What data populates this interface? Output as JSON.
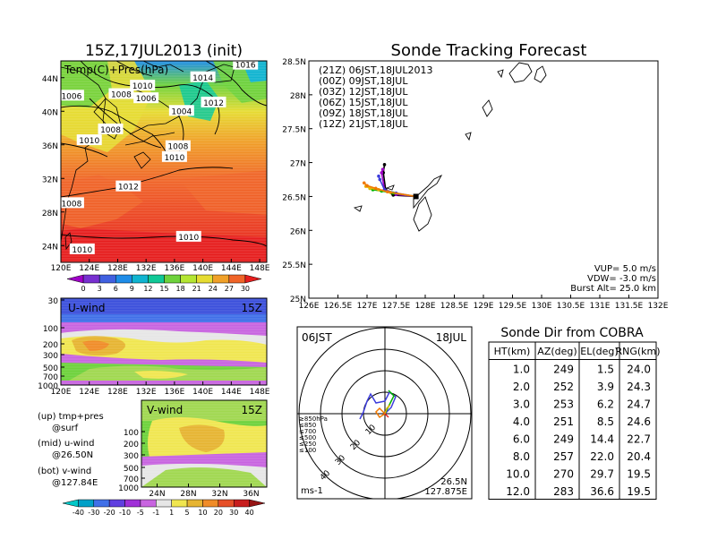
{
  "left": {
    "title": "15Z,17JUL2013 (init)",
    "map_label": "Temp(C)+Pres(hPa)",
    "lat_ticks": [
      "44N",
      "40N",
      "36N",
      "32N",
      "28N",
      "24N"
    ],
    "lon_ticks": [
      "120E",
      "124E",
      "128E",
      "132E",
      "136E",
      "140E",
      "144E",
      "148E"
    ],
    "isobars": [
      {
        "text": "1006",
        "lon": 121.5,
        "lat": 41.8
      },
      {
        "text": "1008",
        "lon": 128.5,
        "lat": 42.0
      },
      {
        "text": "1010",
        "lon": 131.5,
        "lat": 43.0
      },
      {
        "text": "1014",
        "lon": 140.0,
        "lat": 44.0
      },
      {
        "text": "1016",
        "lon": 146.0,
        "lat": 45.5
      },
      {
        "text": "1006",
        "lon": 132.0,
        "lat": 41.5
      },
      {
        "text": "1004",
        "lon": 137.0,
        "lat": 40.0
      },
      {
        "text": "1012",
        "lon": 141.5,
        "lat": 41.0
      },
      {
        "text": "1008",
        "lon": 127.0,
        "lat": 37.8
      },
      {
        "text": "1010",
        "lon": 124.0,
        "lat": 36.5
      },
      {
        "text": "1008",
        "lon": 136.5,
        "lat": 35.8
      },
      {
        "text": "1010",
        "lon": 136.0,
        "lat": 34.5
      },
      {
        "text": "1012",
        "lon": 129.5,
        "lat": 31.0
      },
      {
        "text": "1008",
        "lon": 121.5,
        "lat": 29.0
      },
      {
        "text": "1010",
        "lon": 138.0,
        "lat": 25.0
      },
      {
        "text": "1010",
        "lon": 123.0,
        "lat": 23.5
      }
    ],
    "temp_colorbar": {
      "labels": [
        "0",
        "3",
        "6",
        "9",
        "12",
        "15",
        "18",
        "21",
        "24",
        "27",
        "30"
      ],
      "colors": [
        "#a000c8",
        "#7830d0",
        "#4060e0",
        "#1e8ce8",
        "#10b4d0",
        "#10c896",
        "#6ed23c",
        "#b4e632",
        "#e6dc32",
        "#f0a028",
        "#f06428",
        "#e61e1e"
      ]
    },
    "uwind": {
      "label": "U-wind",
      "time": "15Z",
      "p_ticks": [
        "30",
        "100",
        "200",
        "300",
        "500",
        "700",
        "1000"
      ]
    },
    "vwind": {
      "label": "V-wind",
      "time": "15Z",
      "p_ticks": [
        "100",
        "200",
        "300",
        "500",
        "700",
        "1000"
      ],
      "lat_ticks": [
        "24N",
        "28N",
        "32N",
        "36N"
      ]
    },
    "notes": [
      "(up) tmp+pres",
      "@surf",
      "(mid) u-wind",
      "@26.50N",
      "(bot) v-wind",
      "@127.84E"
    ],
    "wind_colorbar": {
      "labels": [
        "-40",
        "-30",
        "-20",
        "-10",
        "-5",
        "-1",
        "1",
        "5",
        "10",
        "20",
        "30",
        "40"
      ],
      "colors": [
        "#00c8c8",
        "#00a0c8",
        "#4070e8",
        "#6040e0",
        "#a030d8",
        "#c864e0",
        "#e6e6e6",
        "#f0e650",
        "#e6b432",
        "#f08c28",
        "#e65028",
        "#c81e1e",
        "#961414"
      ]
    }
  },
  "track": {
    "title": "Sonde Tracking Forecast",
    "legend": [
      {
        "text": "(21Z) 06JST,18JUL2013",
        "color": "#000000"
      },
      {
        "text": "(00Z) 09JST,18JUL",
        "color": "#a000c8"
      },
      {
        "text": "(03Z) 12JST,18JUL",
        "color": "#3c3cdc"
      },
      {
        "text": "(06Z) 15JST,18JUL",
        "color": "#00b400"
      },
      {
        "text": "(09Z) 18JST,18JUL",
        "color": "#e6b400"
      },
      {
        "text": "(12Z) 21JST,18JUL",
        "color": "#f07800"
      }
    ],
    "lat_ticks": [
      "28.5N",
      "28N",
      "27.5N",
      "27N",
      "26.5N",
      "26N",
      "25.5N",
      "25N"
    ],
    "lon_ticks": [
      "126E",
      "126.5E",
      "127E",
      "127.5E",
      "128E",
      "128.5E",
      "129E",
      "129.5E",
      "130E",
      "130.5E",
      "131E",
      "131.5E",
      "132E"
    ],
    "info": [
      "VUP= 5.0 m/s",
      "VDW= -3.0 m/s",
      "Burst Alt= 25.0 km"
    ],
    "tracks": [
      {
        "color": "#000000",
        "points": [
          [
            127.84,
            26.5
          ],
          [
            127.45,
            26.52
          ],
          [
            127.32,
            26.6
          ],
          [
            127.28,
            26.85
          ],
          [
            127.3,
            26.97
          ]
        ]
      },
      {
        "color": "#a000c8",
        "points": [
          [
            127.84,
            26.5
          ],
          [
            127.5,
            26.53
          ],
          [
            127.3,
            26.6
          ],
          [
            127.25,
            26.85
          ],
          [
            127.27,
            26.9
          ]
        ]
      },
      {
        "color": "#3c3cdc",
        "points": [
          [
            127.84,
            26.5
          ],
          [
            127.5,
            26.55
          ],
          [
            127.3,
            26.6
          ],
          [
            127.22,
            26.75
          ],
          [
            127.2,
            26.8
          ]
        ]
      },
      {
        "color": "#00b400",
        "points": [
          [
            127.84,
            26.5
          ],
          [
            127.45,
            26.55
          ],
          [
            127.25,
            26.58
          ],
          [
            127.1,
            26.6
          ],
          [
            127.05,
            26.62
          ]
        ]
      },
      {
        "color": "#e6b400",
        "points": [
          [
            127.84,
            26.5
          ],
          [
            127.4,
            26.56
          ],
          [
            127.2,
            26.6
          ],
          [
            127.05,
            26.62
          ],
          [
            126.98,
            26.65
          ]
        ]
      },
      {
        "color": "#f07800",
        "points": [
          [
            127.84,
            26.5
          ],
          [
            127.35,
            26.57
          ],
          [
            127.15,
            26.62
          ],
          [
            127.0,
            26.66
          ],
          [
            126.95,
            26.7
          ]
        ]
      }
    ]
  },
  "hodograph": {
    "jst": "06JST",
    "date": "18JUL",
    "legend": [
      {
        "text": "≥850hPa",
        "color": "#e61e1e"
      },
      {
        "text": "≤850",
        "color": "#f07800"
      },
      {
        "text": "≤700",
        "color": "#e6b400"
      },
      {
        "text": "≤500",
        "color": "#00b400"
      },
      {
        "text": "≤250",
        "color": "#00b4dc"
      },
      {
        "text": "≤100",
        "color": "#3c3cdc"
      }
    ],
    "ring_labels": [
      "10",
      "20",
      "30",
      "40"
    ],
    "unit": "ms-1",
    "location": [
      "26.5N",
      "127.875E"
    ]
  },
  "table": {
    "title": "Sonde Dir from COBRA",
    "headers": [
      "HT(km)",
      "AZ(deg)",
      "EL(deg)",
      "RNG(km)"
    ],
    "rows": [
      [
        "1.0",
        "249",
        "1.5",
        "24.0"
      ],
      [
        "2.0",
        "252",
        "3.9",
        "24.3"
      ],
      [
        "3.0",
        "253",
        "6.2",
        "24.7"
      ],
      [
        "4.0",
        "251",
        "8.5",
        "24.6"
      ],
      [
        "6.0",
        "249",
        "14.4",
        "22.7"
      ],
      [
        "8.0",
        "257",
        "22.0",
        "20.4"
      ],
      [
        "10.0",
        "270",
        "29.7",
        "19.5"
      ],
      [
        "12.0",
        "283",
        "36.6",
        "19.5"
      ]
    ]
  },
  "chart_data": [
    {
      "type": "heatmap",
      "title": "15Z,17JUL2013 (init)",
      "label": "Temp(C)+Pres(hPa)",
      "xlim": [
        120,
        149
      ],
      "ylim": [
        22,
        46
      ]
    },
    {
      "type": "heatmap",
      "label": "U-wind",
      "time": "15Z"
    },
    {
      "type": "heatmap",
      "label": "V-wind",
      "time": "15Z"
    },
    {
      "type": "line",
      "title": "Sonde Tracking Forecast",
      "xlim": [
        126,
        132
      ],
      "ylim": [
        25,
        28.5
      ]
    },
    {
      "type": "table",
      "title": "Sonde Dir from COBRA"
    }
  ]
}
